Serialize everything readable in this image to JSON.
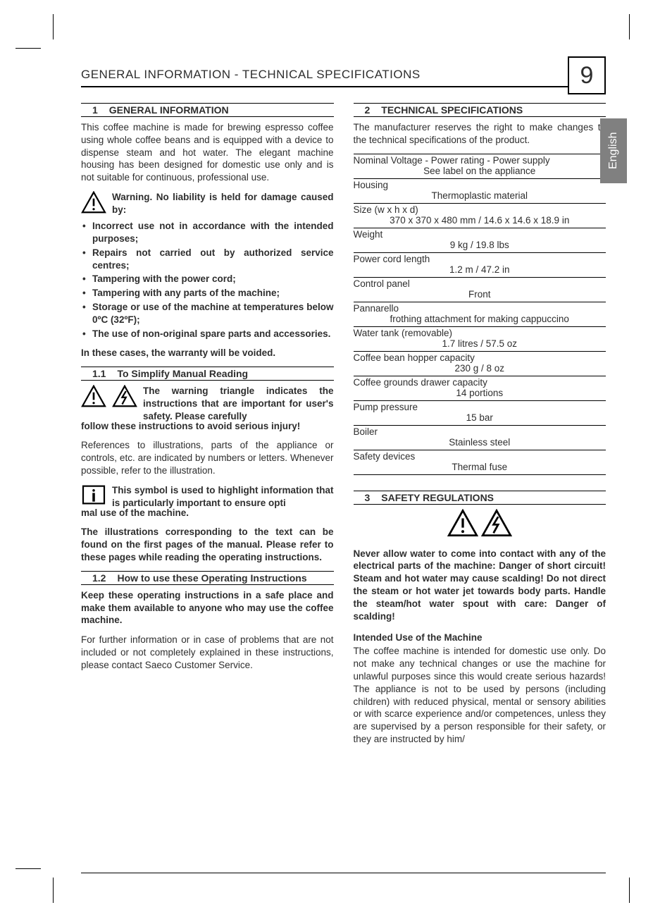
{
  "header": {
    "title": "GENERAL INFORMATION - TECHNICAL SPECIFICATIONS",
    "page_number": "9",
    "language_tab": "English"
  },
  "left": {
    "s1": {
      "num": "1",
      "title": "GENERAL INFORMATION"
    },
    "intro": "This coffee machine is made for brewing espresso coffee using whole coffee beans and is equipped with a device to dispense steam and hot water. The elegant machine housing has been designed for domestic use only and is not suitable for continuous, professional use.",
    "warn_lead": "Warning. No liability is held for damage caused by:",
    "bullets": [
      "Incorrect use not in accordance with the intended purposes;",
      "Repairs not carried out by authorized service centres;",
      "Tampering with the power cord;",
      "Tampering with any parts of the machine;",
      "Storage or use of the machine at temperatures below 0ºC (32ºF);",
      "The use of non-original spare parts and accessories."
    ],
    "warranty": "In these cases, the warranty will be voided.",
    "s11": {
      "num": "1.1",
      "title": "To Simplify Manual Reading"
    },
    "s11_lead": "The warning triangle indicates the instructions that are important for user's safety. Please carefully",
    "s11_follow": "follow these instructions to avoid serious injury!",
    "refs": "References to illustrations, parts of the appliance or controls, etc. are indicated by numbers or letters. Whenever possible, refer to the illustration.",
    "info_lead": "This symbol is used to highlight information that is particularly important to ensure opti",
    "info_follow": "mal use of the machine.",
    "illus": "The illustrations corresponding to the text can be found on the first pages of the manual. Please refer to these pages while reading the operating instructions.",
    "s12": {
      "num": "1.2",
      "title": "How to use these Operating Instructions"
    },
    "s12_p1": "Keep these operating instructions in a safe place and make them available to anyone who may use the coffee machine.",
    "s12_p2": "For further information or in case of problems that are not included or not completely explained in these instructions, please contact Saeco Customer Service."
  },
  "right": {
    "s2": {
      "num": "2",
      "title": "TECHNICAL SPECIFICATIONS"
    },
    "s2_intro": "The manufacturer reserves the right to make changes to the technical specifications of the product.",
    "specs": [
      {
        "label": "Nominal Voltage - Power rating - Power supply",
        "value": "See label on the appliance"
      },
      {
        "label": "Housing",
        "value": "Thermoplastic material"
      },
      {
        "label": "Size (w x h x d)",
        "value": "370 x 370 x 480 mm  /  14.6 x 14.6 x 18.9 in"
      },
      {
        "label": "Weight",
        "value": "9 kg  /  19.8 lbs"
      },
      {
        "label": "Power cord length",
        "value": "1.2 m  /  47.2 in"
      },
      {
        "label": "Control panel",
        "value": "Front"
      },
      {
        "label": "Pannarello",
        "value": "frothing attachment for making cappuccino"
      },
      {
        "label": "Water tank (removable)",
        "value": "1.7 litres  /  57.5 oz"
      },
      {
        "label": "Coffee bean hopper capacity",
        "value": "230 g  /  8 oz"
      },
      {
        "label": "Coffee grounds drawer capacity",
        "value": "14 portions"
      },
      {
        "label": "Pump pressure",
        "value": "15 bar"
      },
      {
        "label": "Boiler",
        "value": "Stainless steel"
      },
      {
        "label": "Safety devices",
        "value": "Thermal fuse"
      }
    ],
    "s3": {
      "num": "3",
      "title": "SAFETY REGULATIONS"
    },
    "s3_p1": "Never allow water to come into contact with any of the electrical parts of the machine: Danger of short circuit! Steam and hot water may cause scalding! Do not direct the steam or hot water jet towards body parts. Handle the steam/hot water spout with care: Danger of scalding!",
    "s3_h": "Intended Use of the Machine",
    "s3_p2": "The coffee machine is intended for domestic use only. Do not make any technical changes or use the machine for unlawful purposes since this would create serious hazards! The appliance is not to be used by persons (including children) with reduced physical, mental or sensory abilities or with scarce experience and/or competences, unless they are supervised by a person responsible for their safety, or they are instructed by him/"
  },
  "colors": {
    "text": "#2e2e2e",
    "lang_tab_bg": "#808080",
    "lang_tab_fg": "#ffffff",
    "rule": "#000000"
  }
}
